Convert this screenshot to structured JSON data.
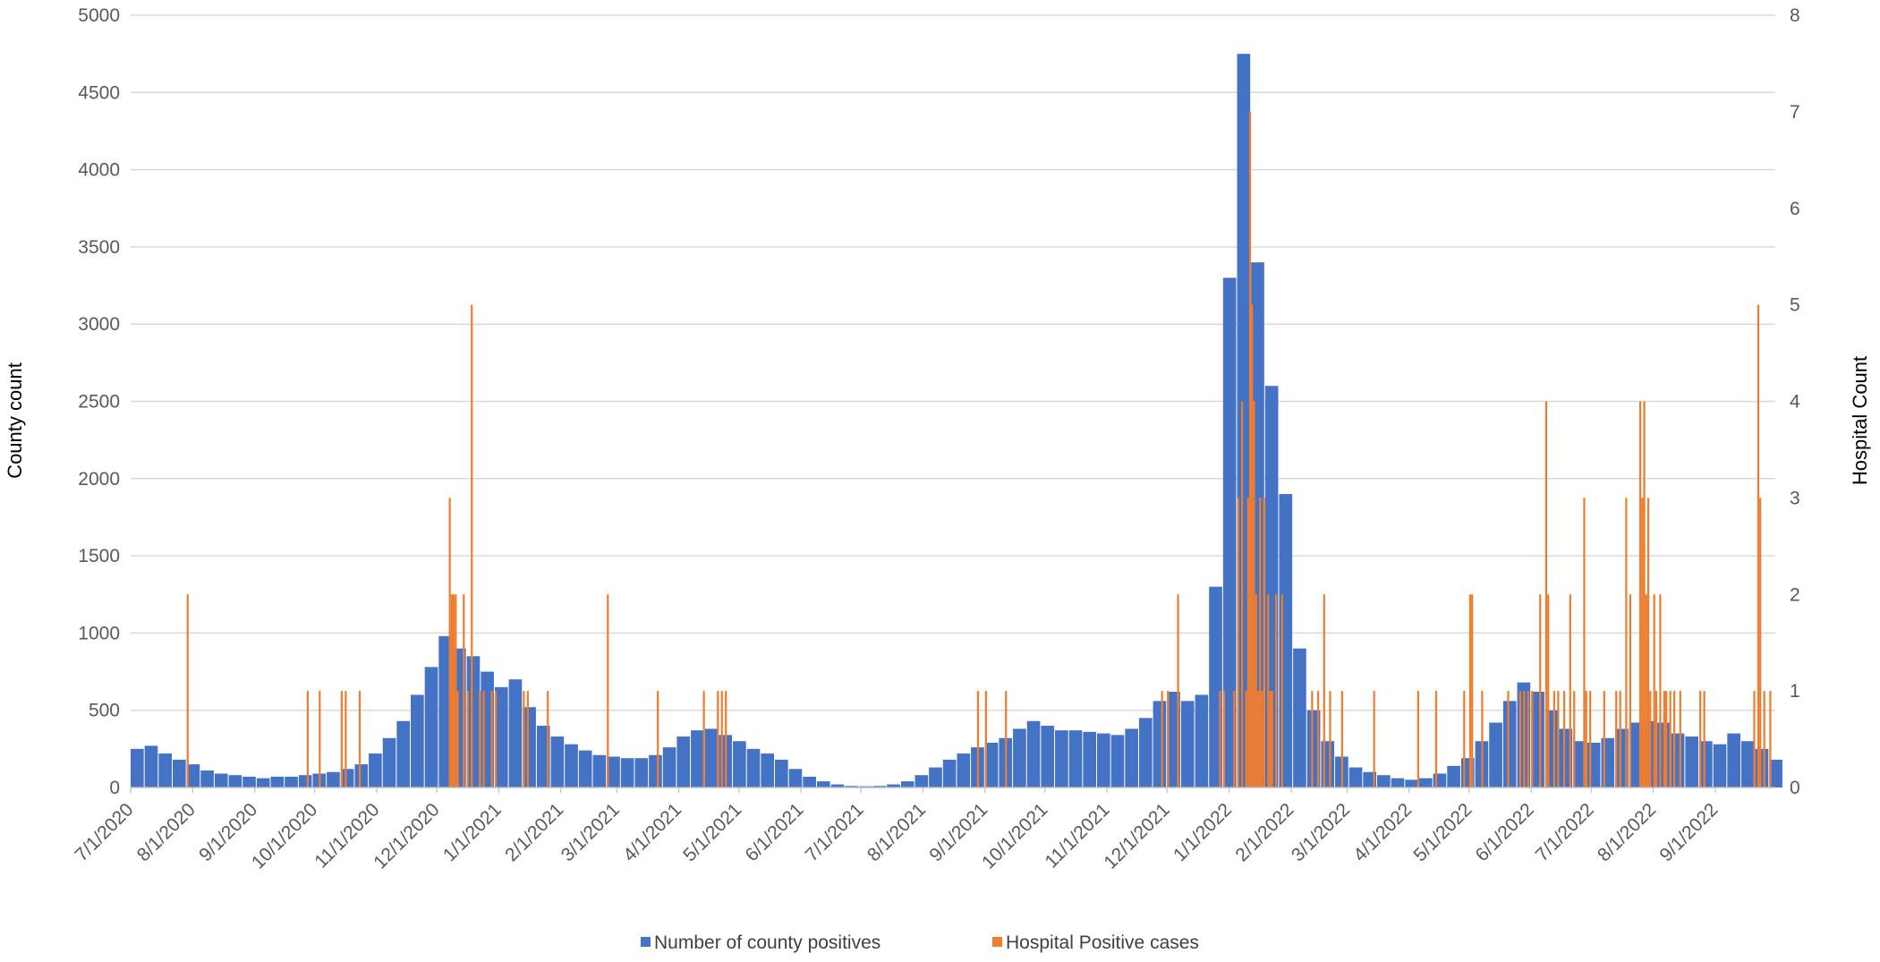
{
  "chart_data": {
    "type": "bar",
    "title": "",
    "ylabel": "County count",
    "y2label": "Hospital Count",
    "ylim": [
      0,
      5000
    ],
    "y2lim": [
      0,
      8
    ],
    "yticks": [
      "0",
      "500",
      "1000",
      "1500",
      "2000",
      "2500",
      "3000",
      "3500",
      "4000",
      "4500",
      "5000"
    ],
    "y2ticks": [
      "0",
      "1",
      "2",
      "3",
      "4",
      "5",
      "6",
      "7",
      "8"
    ],
    "xlim": [
      "2020-07-01",
      "2022-09-30"
    ],
    "xticks": [
      {
        "date": "2020-07-01",
        "label": "7/1/2020"
      },
      {
        "date": "2020-08-01",
        "label": "8/1/2020"
      },
      {
        "date": "2020-09-01",
        "label": "9/1/2020"
      },
      {
        "date": "2020-10-01",
        "label": "10/1/2020"
      },
      {
        "date": "2020-11-01",
        "label": "11/1/2020"
      },
      {
        "date": "2020-12-01",
        "label": "12/1/2020"
      },
      {
        "date": "2021-01-01",
        "label": "1/1/2021"
      },
      {
        "date": "2021-02-01",
        "label": "2/1/2021"
      },
      {
        "date": "2021-03-01",
        "label": "3/1/2021"
      },
      {
        "date": "2021-04-01",
        "label": "4/1/2021"
      },
      {
        "date": "2021-05-01",
        "label": "5/1/2021"
      },
      {
        "date": "2021-06-01",
        "label": "6/1/2021"
      },
      {
        "date": "2021-07-01",
        "label": "7/1/2021"
      },
      {
        "date": "2021-08-01",
        "label": "8/1/2021"
      },
      {
        "date": "2021-09-01",
        "label": "9/1/2021"
      },
      {
        "date": "2021-10-01",
        "label": "10/1/2021"
      },
      {
        "date": "2021-11-01",
        "label": "11/1/2021"
      },
      {
        "date": "2021-12-01",
        "label": "12/1/2021"
      },
      {
        "date": "2022-01-01",
        "label": "1/1/2022"
      },
      {
        "date": "2022-02-01",
        "label": "2/1/2022"
      },
      {
        "date": "2022-03-01",
        "label": "3/1/2022"
      },
      {
        "date": "2022-04-01",
        "label": "4/1/2022"
      },
      {
        "date": "2022-05-01",
        "label": "5/1/2022"
      },
      {
        "date": "2022-06-01",
        "label": "6/1/2022"
      },
      {
        "date": "2022-07-01",
        "label": "7/1/2022"
      },
      {
        "date": "2022-08-01",
        "label": "8/1/2022"
      },
      {
        "date": "2022-09-01",
        "label": "9/1/2022"
      }
    ],
    "grid": true,
    "legend_position": "bottom",
    "series": [
      {
        "name": "Number of county positives",
        "color": "#4472C4",
        "axis": "left",
        "description": "daily counts, weekly values listed",
        "points": [
          [
            "2020-07-01",
            250
          ],
          [
            "2020-07-08",
            270
          ],
          [
            "2020-07-15",
            220
          ],
          [
            "2020-07-22",
            180
          ],
          [
            "2020-07-29",
            150
          ],
          [
            "2020-08-05",
            110
          ],
          [
            "2020-08-12",
            90
          ],
          [
            "2020-08-19",
            80
          ],
          [
            "2020-08-26",
            70
          ],
          [
            "2020-09-02",
            60
          ],
          [
            "2020-09-09",
            70
          ],
          [
            "2020-09-16",
            70
          ],
          [
            "2020-09-23",
            80
          ],
          [
            "2020-09-30",
            90
          ],
          [
            "2020-10-07",
            100
          ],
          [
            "2020-10-14",
            120
          ],
          [
            "2020-10-21",
            150
          ],
          [
            "2020-10-28",
            220
          ],
          [
            "2020-11-04",
            320
          ],
          [
            "2020-11-11",
            430
          ],
          [
            "2020-11-18",
            600
          ],
          [
            "2020-11-25",
            780
          ],
          [
            "2020-12-02",
            980
          ],
          [
            "2020-12-09",
            900
          ],
          [
            "2020-12-16",
            850
          ],
          [
            "2020-12-23",
            750
          ],
          [
            "2020-12-30",
            650
          ],
          [
            "2021-01-06",
            700
          ],
          [
            "2021-01-13",
            520
          ],
          [
            "2021-01-20",
            400
          ],
          [
            "2021-01-27",
            330
          ],
          [
            "2021-02-03",
            280
          ],
          [
            "2021-02-10",
            240
          ],
          [
            "2021-02-17",
            210
          ],
          [
            "2021-02-24",
            200
          ],
          [
            "2021-03-03",
            190
          ],
          [
            "2021-03-10",
            190
          ],
          [
            "2021-03-17",
            210
          ],
          [
            "2021-03-24",
            260
          ],
          [
            "2021-03-31",
            330
          ],
          [
            "2021-04-07",
            370
          ],
          [
            "2021-04-14",
            380
          ],
          [
            "2021-04-21",
            340
          ],
          [
            "2021-04-28",
            300
          ],
          [
            "2021-05-05",
            250
          ],
          [
            "2021-05-12",
            220
          ],
          [
            "2021-05-19",
            180
          ],
          [
            "2021-05-26",
            120
          ],
          [
            "2021-06-02",
            70
          ],
          [
            "2021-06-09",
            40
          ],
          [
            "2021-06-16",
            20
          ],
          [
            "2021-06-23",
            10
          ],
          [
            "2021-06-30",
            8
          ],
          [
            "2021-07-07",
            10
          ],
          [
            "2021-07-14",
            20
          ],
          [
            "2021-07-21",
            40
          ],
          [
            "2021-07-28",
            80
          ],
          [
            "2021-08-04",
            130
          ],
          [
            "2021-08-11",
            180
          ],
          [
            "2021-08-18",
            220
          ],
          [
            "2021-08-25",
            260
          ],
          [
            "2021-09-01",
            290
          ],
          [
            "2021-09-08",
            320
          ],
          [
            "2021-09-15",
            380
          ],
          [
            "2021-09-22",
            430
          ],
          [
            "2021-09-29",
            400
          ],
          [
            "2021-10-06",
            370
          ],
          [
            "2021-10-13",
            370
          ],
          [
            "2021-10-20",
            360
          ],
          [
            "2021-10-27",
            350
          ],
          [
            "2021-11-03",
            340
          ],
          [
            "2021-11-10",
            380
          ],
          [
            "2021-11-17",
            450
          ],
          [
            "2021-11-24",
            560
          ],
          [
            "2021-12-01",
            620
          ],
          [
            "2021-12-08",
            560
          ],
          [
            "2021-12-15",
            600
          ],
          [
            "2021-12-22",
            1300
          ],
          [
            "2021-12-29",
            3300
          ],
          [
            "2022-01-05",
            4750
          ],
          [
            "2022-01-12",
            3400
          ],
          [
            "2022-01-19",
            2600
          ],
          [
            "2022-01-26",
            1900
          ],
          [
            "2022-02-02",
            900
          ],
          [
            "2022-02-09",
            500
          ],
          [
            "2022-02-16",
            300
          ],
          [
            "2022-02-23",
            200
          ],
          [
            "2022-03-02",
            130
          ],
          [
            "2022-03-09",
            100
          ],
          [
            "2022-03-16",
            80
          ],
          [
            "2022-03-23",
            60
          ],
          [
            "2022-03-30",
            50
          ],
          [
            "2022-04-06",
            60
          ],
          [
            "2022-04-13",
            90
          ],
          [
            "2022-04-20",
            140
          ],
          [
            "2022-04-27",
            190
          ],
          [
            "2022-05-04",
            300
          ],
          [
            "2022-05-11",
            420
          ],
          [
            "2022-05-18",
            560
          ],
          [
            "2022-05-25",
            680
          ],
          [
            "2022-06-01",
            620
          ],
          [
            "2022-06-08",
            500
          ],
          [
            "2022-06-15",
            380
          ],
          [
            "2022-06-22",
            300
          ],
          [
            "2022-06-29",
            290
          ],
          [
            "2022-07-06",
            320
          ],
          [
            "2022-07-13",
            380
          ],
          [
            "2022-07-20",
            420
          ],
          [
            "2022-07-27",
            430
          ],
          [
            "2022-08-03",
            420
          ],
          [
            "2022-08-10",
            350
          ],
          [
            "2022-08-17",
            330
          ],
          [
            "2022-08-24",
            300
          ],
          [
            "2022-08-31",
            280
          ],
          [
            "2022-09-07",
            350
          ],
          [
            "2022-09-14",
            300
          ],
          [
            "2022-09-21",
            250
          ],
          [
            "2022-09-28",
            180
          ]
        ]
      },
      {
        "name": "Hospital Positive cases",
        "color": "#ED7D31",
        "axis": "right",
        "points": [
          [
            "2020-07-29",
            2
          ],
          [
            "2020-09-27",
            1
          ],
          [
            "2020-10-03",
            1
          ],
          [
            "2020-10-14",
            1
          ],
          [
            "2020-10-16",
            1
          ],
          [
            "2020-10-23",
            1
          ],
          [
            "2020-12-07",
            3
          ],
          [
            "2020-12-08",
            2
          ],
          [
            "2020-12-09",
            2
          ],
          [
            "2020-12-10",
            2
          ],
          [
            "2020-12-11",
            1
          ],
          [
            "2020-12-14",
            2
          ],
          [
            "2020-12-16",
            1
          ],
          [
            "2020-12-18",
            5
          ],
          [
            "2020-12-22",
            1
          ],
          [
            "2020-12-24",
            1
          ],
          [
            "2020-12-28",
            1
          ],
          [
            "2020-12-30",
            1
          ],
          [
            "2021-01-13",
            1
          ],
          [
            "2021-01-15",
            1
          ],
          [
            "2021-01-25",
            1
          ],
          [
            "2021-02-24",
            2
          ],
          [
            "2021-03-21",
            1
          ],
          [
            "2021-04-13",
            1
          ],
          [
            "2021-04-20",
            1
          ],
          [
            "2021-04-22",
            1
          ],
          [
            "2021-04-24",
            1
          ],
          [
            "2021-08-28",
            1
          ],
          [
            "2021-09-01",
            1
          ],
          [
            "2021-09-11",
            1
          ],
          [
            "2021-11-28",
            1
          ],
          [
            "2021-12-01",
            1
          ],
          [
            "2021-12-06",
            2
          ],
          [
            "2021-12-27",
            1
          ],
          [
            "2021-12-29",
            1
          ],
          [
            "2022-01-03",
            1
          ],
          [
            "2022-01-05",
            3
          ],
          [
            "2022-01-07",
            4
          ],
          [
            "2022-01-09",
            1
          ],
          [
            "2022-01-10",
            3
          ],
          [
            "2022-01-11",
            7
          ],
          [
            "2022-01-12",
            5
          ],
          [
            "2022-01-13",
            4
          ],
          [
            "2022-01-14",
            2
          ],
          [
            "2022-01-15",
            1
          ],
          [
            "2022-01-16",
            3
          ],
          [
            "2022-01-17",
            1
          ],
          [
            "2022-01-18",
            3
          ],
          [
            "2022-01-20",
            2
          ],
          [
            "2022-01-21",
            1
          ],
          [
            "2022-01-22",
            1
          ],
          [
            "2022-01-24",
            2
          ],
          [
            "2022-01-27",
            2
          ],
          [
            "2022-02-11",
            1
          ],
          [
            "2022-02-14",
            1
          ],
          [
            "2022-02-17",
            2
          ],
          [
            "2022-02-20",
            1
          ],
          [
            "2022-02-26",
            1
          ],
          [
            "2022-03-14",
            1
          ],
          [
            "2022-04-05",
            1
          ],
          [
            "2022-04-14",
            1
          ],
          [
            "2022-04-28",
            1
          ],
          [
            "2022-05-01",
            2
          ],
          [
            "2022-05-02",
            2
          ],
          [
            "2022-05-07",
            1
          ],
          [
            "2022-05-20",
            1
          ],
          [
            "2022-05-26",
            1
          ],
          [
            "2022-05-28",
            1
          ],
          [
            "2022-05-30",
            1
          ],
          [
            "2022-06-01",
            1
          ],
          [
            "2022-06-05",
            2
          ],
          [
            "2022-06-08",
            4
          ],
          [
            "2022-06-09",
            2
          ],
          [
            "2022-06-12",
            1
          ],
          [
            "2022-06-14",
            1
          ],
          [
            "2022-06-17",
            1
          ],
          [
            "2022-06-20",
            2
          ],
          [
            "2022-06-22",
            1
          ],
          [
            "2022-06-27",
            3
          ],
          [
            "2022-06-28",
            1
          ],
          [
            "2022-06-30",
            1
          ],
          [
            "2022-07-07",
            1
          ],
          [
            "2022-07-13",
            1
          ],
          [
            "2022-07-15",
            1
          ],
          [
            "2022-07-18",
            3
          ],
          [
            "2022-07-20",
            2
          ],
          [
            "2022-07-25",
            4
          ],
          [
            "2022-07-26",
            3
          ],
          [
            "2022-07-27",
            4
          ],
          [
            "2022-07-28",
            2
          ],
          [
            "2022-07-29",
            3
          ],
          [
            "2022-07-30",
            1
          ],
          [
            "2022-08-01",
            2
          ],
          [
            "2022-08-02",
            1
          ],
          [
            "2022-08-04",
            2
          ],
          [
            "2022-08-06",
            1
          ],
          [
            "2022-08-07",
            1
          ],
          [
            "2022-08-09",
            1
          ],
          [
            "2022-08-11",
            1
          ],
          [
            "2022-08-14",
            1
          ],
          [
            "2022-08-24",
            1
          ],
          [
            "2022-08-26",
            1
          ],
          [
            "2022-09-20",
            1
          ],
          [
            "2022-09-22",
            5
          ],
          [
            "2022-09-23",
            3
          ],
          [
            "2022-09-25",
            1
          ],
          [
            "2022-09-28",
            1
          ]
        ]
      }
    ]
  }
}
